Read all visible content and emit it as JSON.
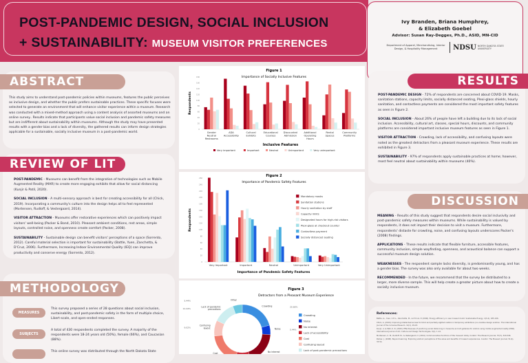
{
  "header": {
    "title_line1": "POST-PANDEMIC DESIGN, SOCIAL INCLUSION",
    "title_line2_dark": "+ SUSTAINABILITY:",
    "title_line2_light": "MUSEUM VISITOR PREFERENCES",
    "authors_line1": "Ivy Branden, Briana Humphrey,",
    "authors_line2": "& Elizabeth Goebel",
    "advisor": "Advisor: Susan Ray-Degges, Ph.D., ASID, MN-CID",
    "department": "Department of Apparel, Merchandising, Interior Design, & Hospitality Management",
    "logo_text": "NDSU",
    "logo_sub": "NORTH DAKOTA STATE UNIVERSITY",
    "brand_color": "#c8365f",
    "accent_tan": "#c9a096"
  },
  "abstract": {
    "heading": "ABSTRACT",
    "text": "This study aims to understand post-pandemic policies within museums, features the public perceives as inclusive design, and whether the public prefers sustainable practices. These specific focuses were selected to generate an environment that will enhance visitor experience within a museum. Research was conducted with a mixed-method approach using a content analysis of assorted museums and an online survey.. Results indicate that participants value social inclusion and pandemic safety measures but are indifferent about sustainability within museums. Although the study may have presented results with a gender bias and a lack of diversity, the gathered results can inform design strategies applicable for a sustainable, socially inclusive museum in a post-pandemic world."
  },
  "review": {
    "heading": "REVIEW OF LIT",
    "items": [
      {
        "label": "POST-PANDEMIC",
        "text": " - Museums can benefit from the integration of technologies such as Mobile Augmented Reality (MAR) to create more engaging exhibits that allow for social distancing (Kunjir & Patil, 2020)."
      },
      {
        "label": "SOCIAL INCLUSION",
        "text": " - A multi-sensory approach is best for creating accessibility for all (Chick, 2019).  Incorporating a community's culture into the design helps all to feel represented (Mortensen, Rudloff, & Vestergaard, 2014)."
      },
      {
        "label": "VISITOR ATTRACTION",
        "text": " - Museums offer restorative experiences which can positively impact visitors' well-being (Packer & Bond, 2010).  Pleasant ambient conditions, rest areas, simple layouts, controlled noise, and openness create comfort (Packer, 2008)."
      },
      {
        "label": "SUSTAINABILITY",
        "text": " - Sustainable design can benefit visitors' perceptions of a space (Sorrento, 2012). Careful material selection is important for sustainability (Battle, Yuen, Zanchetta, & D'Cruz, 2006). Furthermore, Increasing Indoor Environmental Quality (IEQ) can improve productivity and conserve energy (Sorrento, 2012)."
      }
    ]
  },
  "methodology": {
    "heading": "METHODOLOGY",
    "items": [
      {
        "label": "MEASURES",
        "text": "This survey proposed a series of 28 questions about social inclusion, sustainability, and post-pandemic safety in the form of multiple choice, Likert-scale, and open-ended responses."
      },
      {
        "label": "SUBJECTS",
        "text": "A total of 430 respondents completed the survey. A majority of the respondents were 18-24 years old (50%), female (66%), and Caucasian (88%)."
      },
      {
        "label": "",
        "text": "This online survey was distributed through the North Dakota State"
      }
    ]
  },
  "results": {
    "heading": "RESULTS",
    "items": [
      {
        "label": "POST-PANDEMIC DESIGN",
        "text": " - 72% of respondents are concerned about COVID-19. Masks, sanitation stations, capacity limits, socially distanced seating, Plexi-glass shields, hourly sanitation, and contactless payments are considered the most important safety features as seen in Figure 2."
      },
      {
        "label": "SOCIAL INCLUSION",
        "text": " - About 26% of people have left a building due to its lack of social inclusion.  Accessibility, cultural art, classes, special hours, discounts, and community platforms are considered important inclusive museum features as seen in Figure 1."
      },
      {
        "label": "VISITOR ATTRACTION",
        "text": " - Crowding, lack of accessibility, and confusing layouts were noted as the greatest detractors from a pleasant museum experience. These results are exhibited in Figure 3."
      },
      {
        "label": "SUSTAINABILITY",
        "text": " - 97% of respondents apply sustainable practices at home; however, most feel neutral about sustainability within museums (40%)."
      }
    ]
  },
  "discussion": {
    "heading": "DISCUSSION",
    "items": [
      {
        "label": "MEANING",
        "text": " - Results of this study suggest that respondents desire social inclusivity and post-pandemic safety measures within museums.  While sustainability is valued by respondents, it does not impact their decision to visit a museum.  Furthermore, respondents' distaste for crowding, noise, and confusing layouts underscores Packer's (2008) findings."
      },
      {
        "label": "APPLICATIONS",
        "text": " - These results indicate that flexible furniture, accessible features, community inclusion, simple wayfinding, openness, and acoustical balance can support a successful museum design solution."
      },
      {
        "label": "WEAKNESSES",
        "text": " - The respondent sample lacks diversity, is predominantly young, and has a gender bias. The survey was also only available  for about two weeks."
      },
      {
        "label": "RECOMMENDED",
        "text": " - In the future, we recommend that the survey be distributed to a larger, more diverse sample.  This will help create a greater picture about how to create a socially inclusive museum."
      }
    ]
  },
  "references": {
    "heading": "References:",
    "items": [
      "Battle, G., Yuen, C.H.L., Zanchetta, M., & D'Cruz, P. (2006). Energy efficiency in new museum build. Sustainable Energy, 4(3-4), 185-196.",
      "Chick, A. (2019). Improving intellectual access for blind and partially sighted visitors in temporary exhibitions (co-creative design solution. The International Journal of the Inclusive Museum, 12(1), 29-43.",
      "Kunjir, A. & Patil, K. R. (2020). Effectiveness of practicing social distancing in museums and art galleries for visitors using mobile augmented reality (MAR). International Journal of Art, Culture and Design Technologies, 9(1), 1-14.",
      "Mortensen, C. M., Rudloff, M., & Vestergaard, V. (2014). Communicative functions of the museum lobby. Curator: The Museum Journal, 57(3), 329-346.",
      "Packer, J. (2008). Beyond learning: Exploring visitors' perceptions of the value and benefits of museum experiences. Curator: The Museum Journal, 51(1), 33-54."
    ]
  },
  "chart_data": [
    {
      "type": "bar",
      "title": "Figure 1",
      "subtitle": "Importance of Socially Inclusive Features",
      "xlabel": "Inclusive Features",
      "ylabel": "Respondents",
      "ylim": [
        0,
        180
      ],
      "yticks": [
        0,
        20,
        40,
        60,
        80,
        100,
        120,
        140,
        160,
        180
      ],
      "grid": false,
      "legend": "bottom",
      "categories": [
        "Gender Neutral Restrooms",
        "ADA Accessibility",
        "Cultural Exhibits",
        "Educational Courses",
        "Discounted Admission",
        "Additional Operating Hours",
        "Rental Spaces",
        "Community Platforms"
      ],
      "series": [
        {
          "name": "Very important",
          "color": "#a8001c",
          "values": [
            76,
            174,
            150,
            86,
            98,
            109,
            48,
            56
          ]
        },
        {
          "name": "Important",
          "color": "#d6343f",
          "values": [
            67,
            105,
            123,
            162,
            153,
            165,
            120,
            137
          ]
        },
        {
          "name": "Neutral",
          "color": "#f28f88",
          "values": [
            109,
            72,
            66,
            92,
            90,
            86,
            154,
            129
          ]
        },
        {
          "name": "Unimportant",
          "color": "#fbd3cf",
          "values": [
            62,
            15,
            18,
            16,
            25,
            12,
            38,
            37
          ]
        },
        {
          "name": "Very unimportant",
          "color": "#d5f1f1",
          "values": [
            67,
            12,
            24,
            20,
            17,
            8,
            23,
            23
          ]
        }
      ]
    },
    {
      "type": "bar",
      "title": "Figure 2",
      "subtitle": "Importance of Pandemic Safety Features",
      "xlabel": "Importance of Pandemic Safety Features",
      "ylabel": "Respondents",
      "ylim": [
        0,
        260
      ],
      "yticks": [
        0,
        20,
        40,
        60,
        80,
        100,
        120,
        140,
        160,
        180,
        200,
        220,
        240,
        260
      ],
      "grid": false,
      "legend": "right",
      "categories": [
        "Very Important",
        "Important",
        "Neutral",
        "Unimportant",
        "Very Unimportant"
      ],
      "series": [
        {
          "name": "Mandatory masks",
          "color": "#a8001c",
          "values": [
            261,
            76,
            43,
            18,
            20
          ]
        },
        {
          "name": "Sanitation stations",
          "color": "#d93b40",
          "values": [
            217,
            138,
            31,
            16,
            16
          ]
        },
        {
          "name": "Hourly sanitation by staff",
          "color": "#f3958c",
          "values": [
            147,
            160,
            79,
            15,
            18
          ]
        },
        {
          "name": "Capacity limits",
          "color": "#fcd6d0",
          "values": [
            214,
            133,
            41,
            13,
            15
          ]
        },
        {
          "name": "Designated hours for high-risk visitors",
          "color": "#e0f6f7",
          "values": [
            142,
            165,
            76,
            18,
            12
          ]
        },
        {
          "name": "Plexi-glass at checkout counter",
          "color": "#9fe0e8",
          "values": [
            114,
            136,
            100,
            42,
            24
          ]
        },
        {
          "name": "Contactless payment",
          "color": "#4aaee0",
          "values": [
            114,
            132,
            108,
            42,
            22
          ]
        },
        {
          "name": "Socially distanced seating",
          "color": "#1a5ee0",
          "values": [
            222,
            112,
            48,
            18,
            15
          ]
        }
      ]
    },
    {
      "type": "pie",
      "donut": true,
      "title": "Figure 3",
      "subtitle": "Detractors from a Pleasant Museum Experience",
      "legend": "right",
      "slices": [
        {
          "name": "Crowding",
          "value": 20.68,
          "label": "20.68%",
          "color": "#3a8ee0"
        },
        {
          "name": "Noise",
          "value": 5.44,
          "label": "5.44%",
          "color": "#0a3bd8"
        },
        {
          "name": "No interest",
          "value": 19,
          "label": "",
          "color": "#8b0014"
        },
        {
          "name": "Lack of accessibility",
          "value": 9,
          "label": "",
          "color": "#c8202e"
        },
        {
          "name": "Cost",
          "value": 18.98,
          "label": "",
          "color": "#ef7a6a"
        },
        {
          "name": "Confusing layout",
          "value": 9.02,
          "label": "9.02%",
          "color": "#f8c5bd"
        },
        {
          "name": "Lack of post-pandemic precautions",
          "short": "Lack of pandemic precautions",
          "value": 12.44,
          "label": "12.44%",
          "color": "#cdeef0"
        },
        {
          "name": "Other",
          "value": 5.44,
          "label": "5.44%",
          "color": "#6cc8e0"
        }
      ]
    }
  ]
}
